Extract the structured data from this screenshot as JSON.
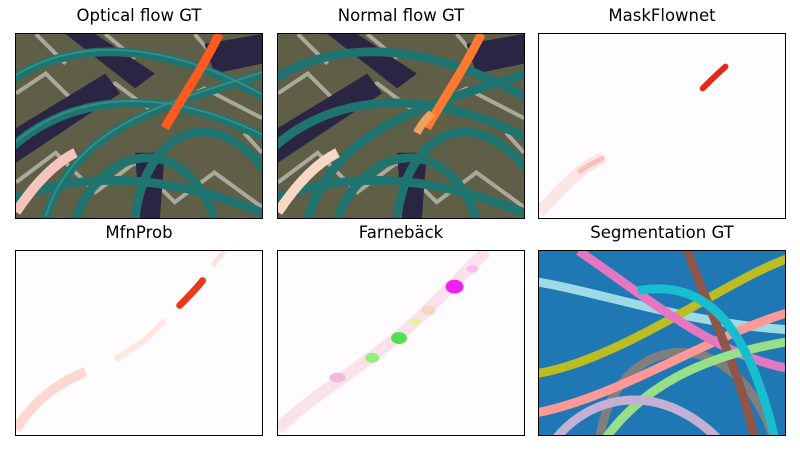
{
  "panels": [
    {
      "id": "optical-flow-gt",
      "title": "Optical flow GT"
    },
    {
      "id": "normal-flow-gt",
      "title": "Normal flow GT"
    },
    {
      "id": "maskflownet",
      "title": "MaskFlownet"
    },
    {
      "id": "mfnprob",
      "title": "MfnProb"
    },
    {
      "id": "farneback",
      "title": "Farnebäck"
    },
    {
      "id": "segmentation-gt",
      "title": "Segmentation GT"
    }
  ],
  "colors": {
    "scene_bg": "#6b6b52",
    "tube_teal": "#1f7470",
    "dark_bar": "#2a2543",
    "flow_red": "#e8261a",
    "flow_pink": "#f6c8c0",
    "seg_bg": "#1f77b4"
  }
}
